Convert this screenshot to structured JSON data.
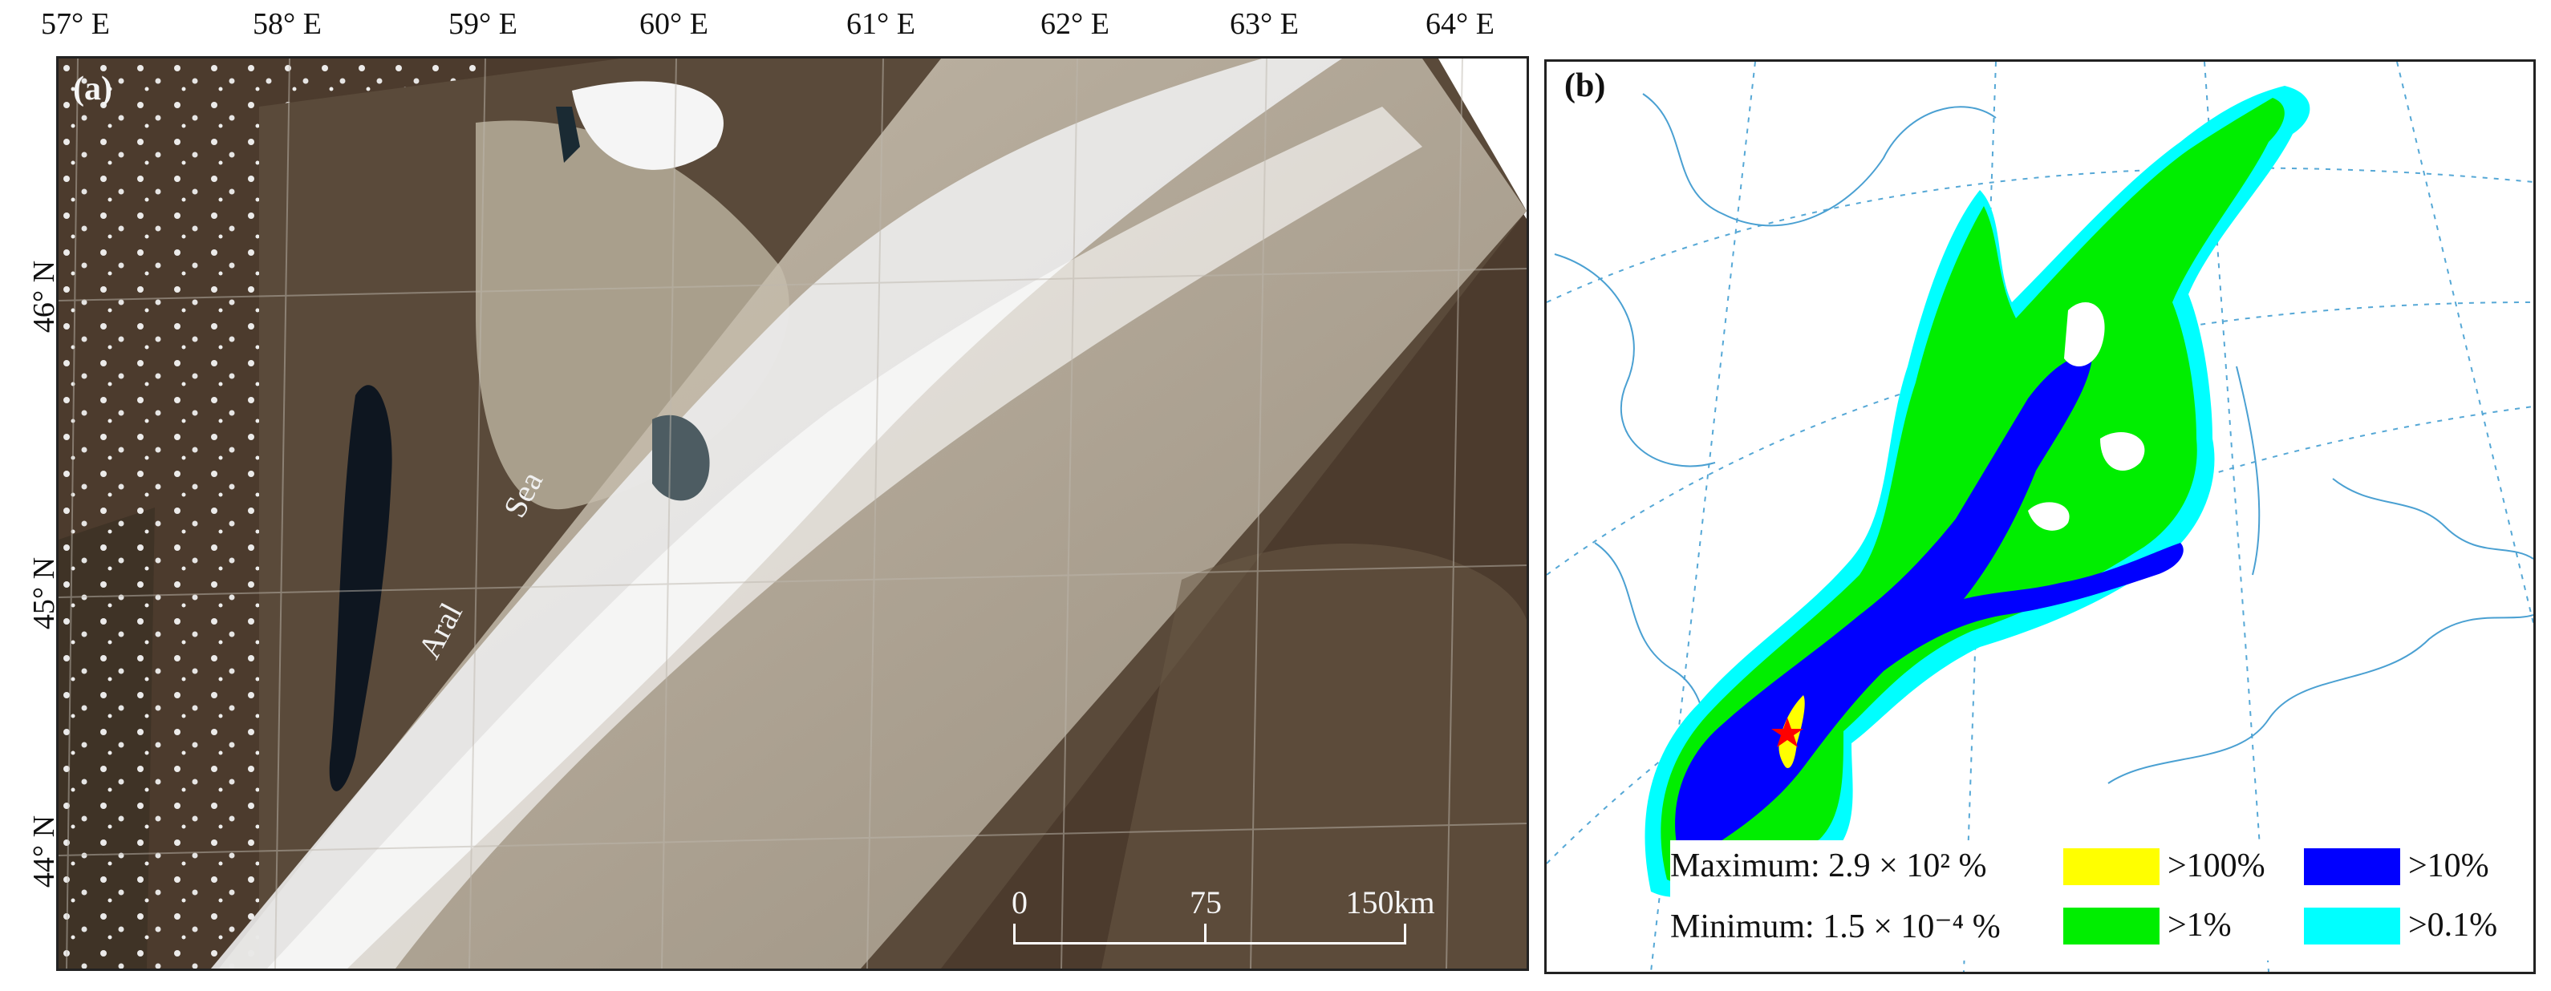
{
  "axes": {
    "longitude_labels": [
      "57° E",
      "58° E",
      "59° E",
      "60° E",
      "61° E",
      "62° E",
      "63° E",
      "64° E"
    ],
    "latitude_labels": [
      "46° N",
      "45° N",
      "44° N"
    ]
  },
  "panel_a": {
    "tag": "(a)",
    "place_labels": {
      "aral": "Aral",
      "sea": "Sea"
    },
    "scale_bar": {
      "ticks": [
        "0",
        "75",
        "150"
      ],
      "unit": "km"
    }
  },
  "panel_b": {
    "tag": "(b)",
    "maximum_text": "Maximum: 2.9 × 10² %",
    "minimum_text": "Minimum: 1.5 × 10⁻⁴ %",
    "legend": [
      {
        "label": ">100%",
        "color": "#ffff00"
      },
      {
        "label": ">10%",
        "color": "#0000ff"
      },
      {
        "label": ">1%",
        "color": "#00ee00"
      },
      {
        "label": ">0.1%",
        "color": "#00ffff"
      }
    ],
    "source_marker_color": "#ff0000"
  }
}
